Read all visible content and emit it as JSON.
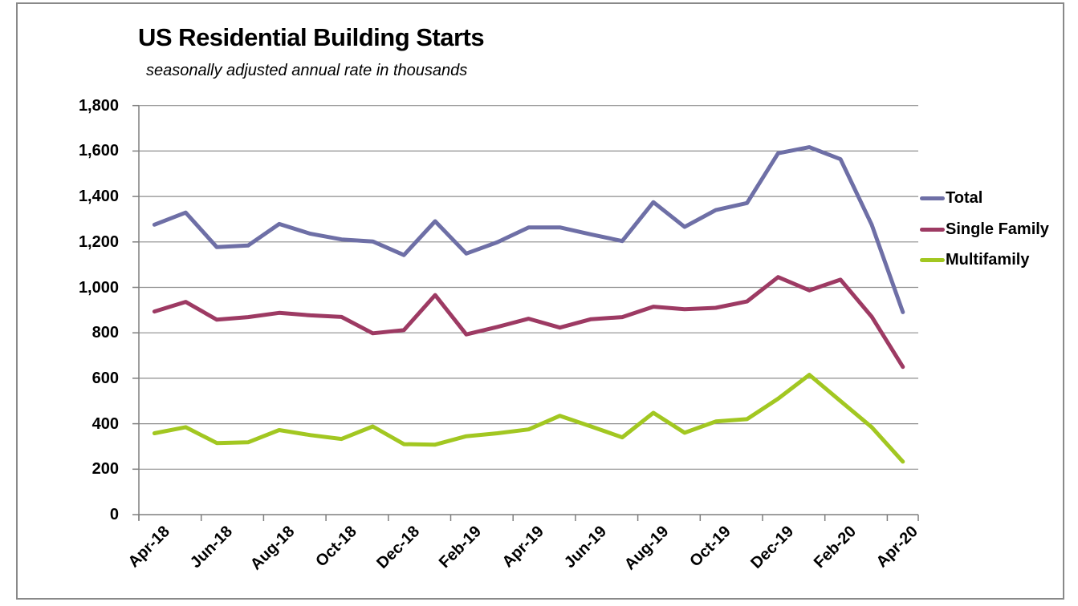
{
  "chart": {
    "title": "US Residential Building Starts",
    "subtitle": "seasonally adjusted annual rate in thousands"
  },
  "colors": {
    "background": "#FFFFFF",
    "frame_border": "#898989",
    "gridline": "#8E8E8E",
    "axis": "#7F7F7F",
    "text": "#000000",
    "total_line": "#6E6FA6",
    "single_family_line": "#9D3A63",
    "multifamily_line": "#A2C721"
  },
  "chart_data": {
    "type": "line",
    "title": "US Residential Building Starts",
    "subtitle": "seasonally adjusted annual rate in thousands",
    "x": [
      "Apr-18",
      "May-18",
      "Jun-18",
      "Jul-18",
      "Aug-18",
      "Sep-18",
      "Oct-18",
      "Nov-18",
      "Dec-18",
      "Jan-19",
      "Feb-19",
      "Mar-19",
      "Apr-19",
      "May-19",
      "Jun-19",
      "Jul-19",
      "Aug-19",
      "Sep-19",
      "Oct-19",
      "Nov-19",
      "Dec-19",
      "Jan-20",
      "Feb-20",
      "Mar-20",
      "Apr-20"
    ],
    "x_tick_labels": [
      "Apr-18",
      "Jun-18",
      "Aug-18",
      "Oct-18",
      "Dec-18",
      "Feb-19",
      "Apr-19",
      "Jun-19",
      "Aug-19",
      "Oct-19",
      "Dec-19",
      "Feb-20",
      "Apr-20"
    ],
    "series": [
      {
        "name": "Total",
        "color": "#6E6FA6",
        "values": [
          1276,
          1329,
          1177,
          1184,
          1279,
          1236,
          1211,
          1202,
          1142,
          1291,
          1149,
          1199,
          1264,
          1264,
          1233,
          1204,
          1375,
          1266,
          1340,
          1371,
          1590,
          1617,
          1564,
          1276,
          891
        ]
      },
      {
        "name": "Single Family",
        "color": "#9D3A63",
        "values": [
          894,
          936,
          858,
          869,
          888,
          877,
          870,
          798,
          812,
          966,
          793,
          826,
          862,
          823,
          860,
          869,
          915,
          904,
          910,
          938,
          1045,
          987,
          1034,
          871,
          650
        ]
      },
      {
        "name": "Multifamily",
        "color": "#A2C721",
        "values": [
          358,
          385,
          315,
          318,
          372,
          350,
          333,
          388,
          310,
          308,
          345,
          358,
          375,
          435,
          388,
          340,
          448,
          360,
          410,
          420,
          510,
          615,
          500,
          385,
          233
        ]
      }
    ],
    "ylim": [
      0,
      1800
    ],
    "y_ticks": [
      0,
      200,
      400,
      600,
      800,
      1000,
      1200,
      1400,
      1600,
      1800
    ],
    "y_tick_labels": [
      "0",
      "200",
      "400",
      "600",
      "800",
      "1,000",
      "1,200",
      "1,400",
      "1,600",
      "1,800"
    ],
    "grid": true,
    "legend_position": "right",
    "legend": [
      "Total",
      "Single Family",
      "Multifamily"
    ]
  }
}
